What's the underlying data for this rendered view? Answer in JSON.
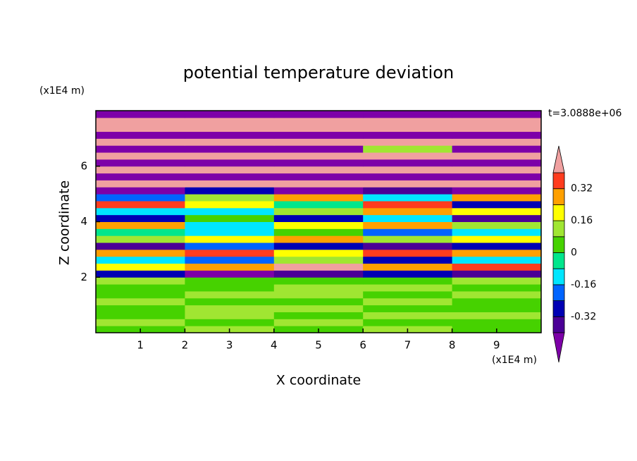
{
  "chart_data": {
    "type": "contour",
    "title": "potential temperature deviation",
    "x_label": "X coordinate",
    "y_label": "Z coordinate",
    "x_unit": "(x1E4 m)",
    "y_unit": "(x1E4 m)",
    "time_label": "t=3.0888e+06",
    "xlim": [
      0,
      10
    ],
    "ylim": [
      0,
      8
    ],
    "xticks": [
      1,
      2,
      3,
      4,
      5,
      6,
      7,
      8,
      9
    ],
    "yticks": [
      2,
      4,
      6
    ],
    "x": [
      1,
      3,
      5,
      7,
      9
    ],
    "z": [
      0.125,
      0.375,
      0.625,
      0.875,
      1.125,
      1.375,
      1.625,
      1.875,
      2.125,
      2.375,
      2.625,
      2.875,
      3.125,
      3.375,
      3.625,
      3.875,
      4.125,
      4.375,
      4.625,
      4.875,
      5.125,
      5.375,
      5.625,
      5.875,
      6.125,
      6.375,
      6.625,
      6.875,
      7.125,
      7.375,
      7.625,
      7.875
    ],
    "values": [
      [
        0.05,
        0.1,
        0.03,
        0.1,
        0.05
      ],
      [
        0.1,
        0.03,
        0.1,
        0.05,
        0.03
      ],
      [
        0.03,
        0.1,
        0.05,
        0.1,
        0.1
      ],
      [
        0.05,
        0.1,
        0.1,
        0.03,
        0.05
      ],
      [
        0.1,
        0.05,
        0.03,
        0.1,
        0.03
      ],
      [
        0.03,
        0.1,
        0.1,
        0.05,
        0.1
      ],
      [
        0.05,
        0.03,
        0.1,
        0.1,
        0.05
      ],
      [
        0.1,
        0.05,
        0.05,
        0.03,
        0.1
      ],
      [
        -0.3,
        -0.45,
        -0.35,
        -0.3,
        -0.4
      ],
      [
        0.2,
        0.3,
        0.45,
        0.25,
        0.35
      ],
      [
        -0.1,
        -0.2,
        0.1,
        -0.3,
        -0.15
      ],
      [
        0.3,
        0.35,
        0.2,
        0.38,
        0.28
      ],
      [
        -0.35,
        -0.2,
        -0.3,
        -0.4,
        -0.25
      ],
      [
        0.1,
        0.2,
        0.3,
        0.15,
        0.22
      ],
      [
        -0.05,
        -0.12,
        0.02,
        -0.2,
        -0.1
      ],
      [
        0.25,
        -0.1,
        0.18,
        0.3,
        0.12
      ],
      [
        -0.25,
        0.05,
        -0.3,
        -0.15,
        -0.35
      ],
      [
        -0.1,
        -0.15,
        0.12,
        0.3,
        0.2
      ],
      [
        0.35,
        0.2,
        -0.05,
        0.36,
        -0.3
      ],
      [
        -0.2,
        0.1,
        0.3,
        -0.1,
        0.25
      ],
      [
        -0.45,
        -0.3,
        -0.42,
        -0.38,
        -0.45
      ],
      [
        0.5,
        0.5,
        0.5,
        0.5,
        0.5
      ],
      [
        -0.5,
        -0.5,
        -0.5,
        -0.5,
        -0.5
      ],
      [
        0.5,
        0.5,
        0.5,
        0.5,
        0.5
      ],
      [
        -0.5,
        -0.5,
        -0.5,
        -0.5,
        -0.5
      ],
      [
        0.5,
        0.5,
        0.5,
        0.5,
        0.5
      ],
      [
        -0.5,
        -0.5,
        -0.5,
        0.1,
        -0.5
      ],
      [
        0.5,
        0.5,
        0.5,
        0.5,
        0.5
      ],
      [
        -0.5,
        -0.5,
        -0.5,
        -0.5,
        -0.5
      ],
      [
        0.5,
        0.5,
        0.5,
        0.5,
        0.5
      ],
      [
        0.5,
        0.5,
        0.5,
        0.5,
        0.5
      ],
      [
        -0.5,
        -0.5,
        -0.5,
        -0.5,
        -0.5
      ]
    ],
    "levels": [
      -0.4,
      -0.32,
      -0.24,
      -0.16,
      -0.08,
      0,
      0.08,
      0.16,
      0.24,
      0.32,
      0.4
    ],
    "colors": [
      "#7d00a8",
      "#4b0096",
      "#0000b4",
      "#0064ff",
      "#00e6ff",
      "#00e68c",
      "#46d200",
      "#a0e632",
      "#ffff00",
      "#ffa000",
      "#ff3c1e",
      "#f0a0a0"
    ],
    "colorbar_ticks": [
      -0.32,
      -0.16,
      0,
      0.16,
      0.32
    ]
  }
}
